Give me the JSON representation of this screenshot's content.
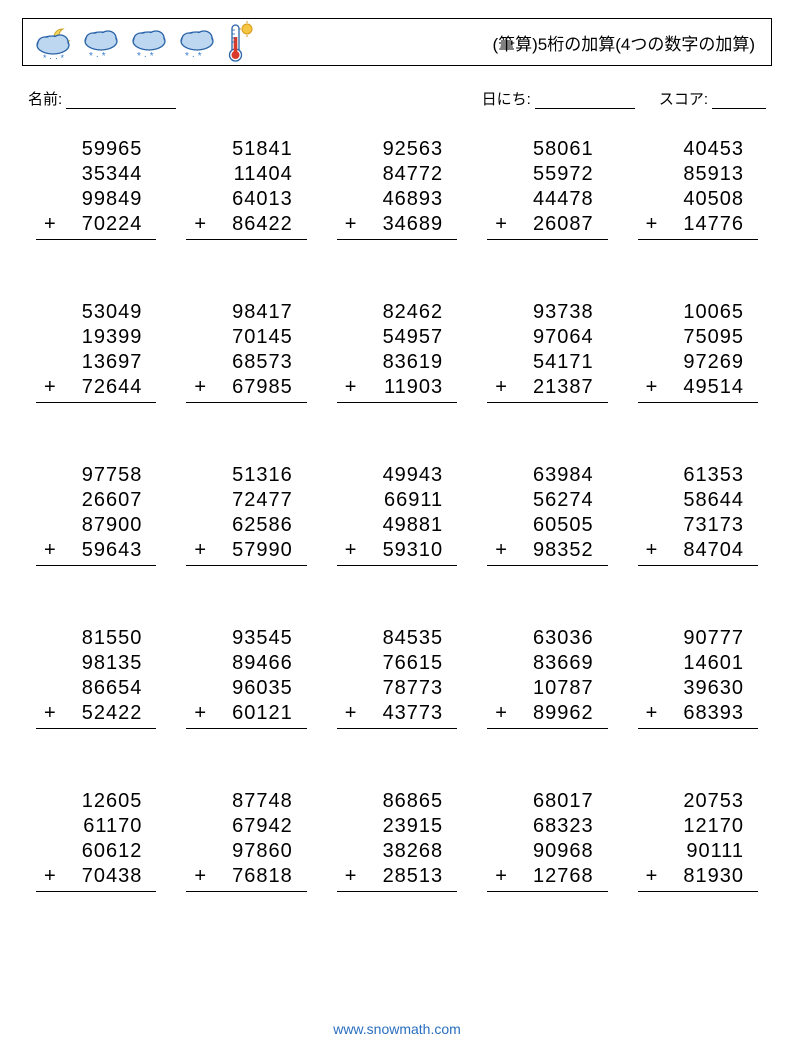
{
  "header": {
    "title": "(筆算)5桁の加算(4つの数字の加算)"
  },
  "info": {
    "name_label": "名前:",
    "date_label": "日にち:",
    "score_label": "スコア:"
  },
  "icons": {
    "cloud_fill": "#bcd7ef",
    "cloud_stroke": "#2a63a8",
    "moon_fill": "#f2d35b",
    "sun_fill": "#f6c642",
    "snow_color": "#3a7fcf",
    "therm_tube": "#ffffff",
    "therm_stroke": "#2a63a8",
    "therm_fluid": "#d83a2b"
  },
  "colors": {
    "text": "#000000",
    "border": "#000000",
    "background": "#ffffff",
    "footer": "#2a6fbf"
  },
  "typography": {
    "number_fontsize": 20,
    "title_fontsize": 17,
    "info_fontsize": 15,
    "footer_fontsize": 14
  },
  "layout": {
    "columns": 5,
    "rows": 5,
    "addends_per_problem": 4
  },
  "footer": {
    "text": "www.snowmath.com"
  },
  "problems": [
    [
      [
        "59965",
        "35344",
        "99849",
        "70224"
      ],
      [
        "51841",
        "11404",
        "64013",
        "86422"
      ],
      [
        "92563",
        "84772",
        "46893",
        "34689"
      ],
      [
        "58061",
        "55972",
        "44478",
        "26087"
      ],
      [
        "40453",
        "85913",
        "40508",
        "14776"
      ]
    ],
    [
      [
        "53049",
        "19399",
        "13697",
        "72644"
      ],
      [
        "98417",
        "70145",
        "68573",
        "67985"
      ],
      [
        "82462",
        "54957",
        "83619",
        "11903"
      ],
      [
        "93738",
        "97064",
        "54171",
        "21387"
      ],
      [
        "10065",
        "75095",
        "97269",
        "49514"
      ]
    ],
    [
      [
        "97758",
        "26607",
        "87900",
        "59643"
      ],
      [
        "51316",
        "72477",
        "62586",
        "57990"
      ],
      [
        "49943",
        "66911",
        "49881",
        "59310"
      ],
      [
        "63984",
        "56274",
        "60505",
        "98352"
      ],
      [
        "61353",
        "58644",
        "73173",
        "84704"
      ]
    ],
    [
      [
        "81550",
        "98135",
        "86654",
        "52422"
      ],
      [
        "93545",
        "89466",
        "96035",
        "60121"
      ],
      [
        "84535",
        "76615",
        "78773",
        "43773"
      ],
      [
        "63036",
        "83669",
        "10787",
        "89962"
      ],
      [
        "90777",
        "14601",
        "39630",
        "68393"
      ]
    ],
    [
      [
        "12605",
        "61170",
        "60612",
        "70438"
      ],
      [
        "87748",
        "67942",
        "97860",
        "76818"
      ],
      [
        "86865",
        "23915",
        "38268",
        "28513"
      ],
      [
        "68017",
        "68323",
        "90968",
        "12768"
      ],
      [
        "20753",
        "12170",
        "90111",
        "81930"
      ]
    ]
  ]
}
